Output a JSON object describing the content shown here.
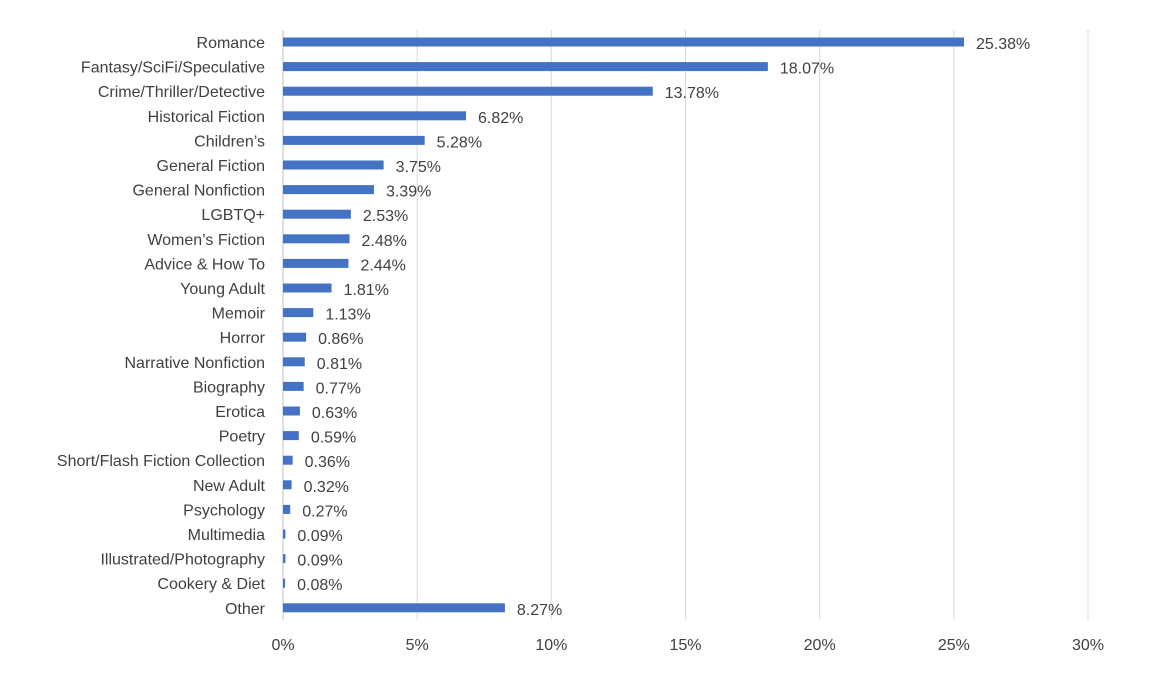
{
  "chart_data": {
    "type": "bar",
    "orientation": "horizontal",
    "title": "",
    "xlabel": "",
    "ylabel": "",
    "xlim": [
      0,
      30
    ],
    "x_ticks": [
      "0%",
      "5%",
      "10%",
      "15%",
      "20%",
      "25%",
      "30%"
    ],
    "grid": "vertical",
    "bar_color": "#4472C4",
    "categories": [
      "Romance",
      "Fantasy/SciFi/Speculative",
      "Crime/Thriller/Detective",
      "Historical Fiction",
      "Children’s",
      "General Fiction",
      "General Nonfiction",
      "LGBTQ+",
      "Women’s Fiction",
      "Advice & How To",
      "Young Adult",
      "Memoir",
      "Horror",
      "Narrative Nonfiction",
      "Biography",
      "Erotica",
      "Poetry",
      "Short/Flash Fiction Collection",
      "New Adult",
      "Psychology",
      "Multimedia",
      "Illustrated/Photography",
      "Cookery & Diet",
      "Other"
    ],
    "values": [
      25.38,
      18.07,
      13.78,
      6.82,
      5.28,
      3.75,
      3.39,
      2.53,
      2.48,
      2.44,
      1.81,
      1.13,
      0.86,
      0.81,
      0.77,
      0.63,
      0.59,
      0.36,
      0.32,
      0.27,
      0.09,
      0.09,
      0.08,
      8.27
    ],
    "value_labels": [
      "25.38%",
      "18.07%",
      "13.78%",
      "6.82%",
      "5.28%",
      "3.75%",
      "3.39%",
      "2.53%",
      "2.48%",
      "2.44%",
      "1.81%",
      "1.13%",
      "0.86%",
      "0.81%",
      "0.77%",
      "0.63%",
      "0.59%",
      "0.36%",
      "0.32%",
      "0.27%",
      "0.09%",
      "0.09%",
      "0.08%",
      "8.27%"
    ]
  }
}
